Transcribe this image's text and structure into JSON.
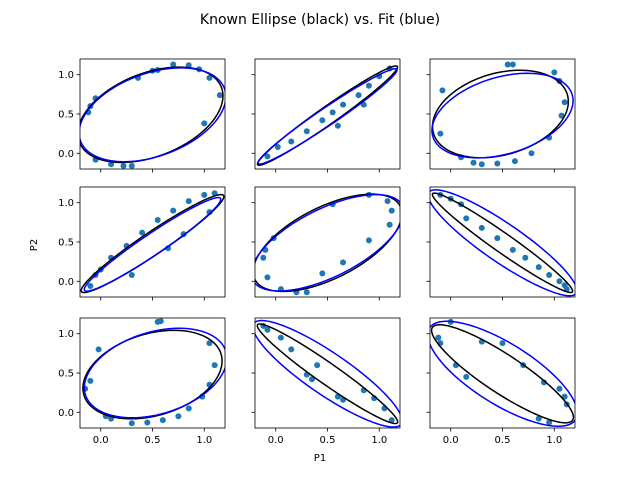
{
  "chart_data": {
    "type": "scatter",
    "title": "Known Ellipse (black) vs. Fit (blue)",
    "xlabel": "P1",
    "ylabel": "P2",
    "xlim": [
      -0.2,
      1.2
    ],
    "ylim": [
      -0.2,
      1.2
    ],
    "xticks": [
      0.0,
      0.5,
      1.0
    ],
    "yticks": [
      0.0,
      0.5,
      1.0
    ],
    "grid": false,
    "rows": 3,
    "cols": 3,
    "colors": {
      "known": "#000000",
      "fit": "#0000ff",
      "points": "#1f77b4"
    },
    "series_names": [
      "Known Ellipse",
      "Fit"
    ],
    "panels": [
      {
        "known": {
          "cx": 0.48,
          "cy": 0.49,
          "a": 0.78,
          "b": 0.5,
          "angle_deg": 35
        },
        "fit": {
          "cx": 0.5,
          "cy": 0.49,
          "a": 0.78,
          "b": 0.5,
          "angle_deg": 33
        },
        "points": [
          [
            -0.12,
            0.52
          ],
          [
            -0.1,
            0.6
          ],
          [
            -0.05,
            0.7
          ],
          [
            -0.05,
            -0.08
          ],
          [
            0.1,
            -0.14
          ],
          [
            0.22,
            -0.16
          ],
          [
            0.3,
            -0.16
          ],
          [
            0.36,
            0.96
          ],
          [
            0.5,
            1.05
          ],
          [
            0.55,
            1.06
          ],
          [
            0.7,
            1.13
          ],
          [
            0.85,
            1.12
          ],
          [
            0.95,
            1.07
          ],
          [
            1.05,
            0.96
          ],
          [
            1.0,
            0.38
          ],
          [
            1.15,
            0.74
          ]
        ]
      },
      {
        "known": {
          "cx": 0.5,
          "cy": 0.48,
          "a": 0.92,
          "b": 0.1,
          "angle_deg": 43
        },
        "fit": {
          "cx": 0.5,
          "cy": 0.47,
          "a": 0.9,
          "b": 0.1,
          "angle_deg": 42
        },
        "points": [
          [
            -0.08,
            -0.04
          ],
          [
            0.02,
            0.08
          ],
          [
            0.15,
            0.15
          ],
          [
            0.3,
            0.28
          ],
          [
            0.45,
            0.42
          ],
          [
            0.55,
            0.52
          ],
          [
            0.65,
            0.62
          ],
          [
            0.8,
            0.74
          ],
          [
            0.9,
            0.86
          ],
          [
            1.0,
            0.98
          ],
          [
            1.1,
            1.08
          ],
          [
            0.6,
            0.35
          ],
          [
            0.85,
            0.62
          ]
        ]
      },
      {
        "known": {
          "cx": 0.48,
          "cy": 0.5,
          "a": 0.7,
          "b": 0.5,
          "angle_deg": 30
        },
        "fit": {
          "cx": 0.5,
          "cy": 0.48,
          "a": 0.73,
          "b": 0.47,
          "angle_deg": 28
        },
        "points": [
          [
            -0.08,
            0.8
          ],
          [
            -0.1,
            0.25
          ],
          [
            0.1,
            -0.05
          ],
          [
            0.22,
            -0.12
          ],
          [
            0.3,
            -0.14
          ],
          [
            0.45,
            -0.13
          ],
          [
            0.62,
            -0.1
          ],
          [
            0.78,
            0.0
          ],
          [
            0.95,
            0.2
          ],
          [
            1.07,
            0.48
          ],
          [
            1.1,
            0.65
          ],
          [
            1.05,
            0.92
          ],
          [
            1.0,
            1.03
          ],
          [
            0.55,
            1.13
          ],
          [
            0.6,
            1.13
          ]
        ]
      },
      {
        "known": {
          "cx": 0.5,
          "cy": 0.48,
          "a": 0.92,
          "b": 0.13,
          "angle_deg": 42
        },
        "fit": {
          "cx": 0.5,
          "cy": 0.47,
          "a": 0.88,
          "b": 0.12,
          "angle_deg": 42
        },
        "points": [
          [
            -0.1,
            -0.06
          ],
          [
            -0.05,
            0.08
          ],
          [
            0.0,
            0.15
          ],
          [
            0.1,
            0.3
          ],
          [
            0.25,
            0.45
          ],
          [
            0.4,
            0.62
          ],
          [
            0.55,
            0.78
          ],
          [
            0.7,
            0.9
          ],
          [
            0.85,
            1.02
          ],
          [
            1.0,
            1.1
          ],
          [
            1.1,
            1.12
          ],
          [
            0.8,
            0.6
          ],
          [
            0.65,
            0.42
          ],
          [
            0.3,
            0.08
          ],
          [
            1.05,
            0.88
          ]
        ]
      },
      {
        "known": {
          "cx": 0.5,
          "cy": 0.49,
          "a": 0.85,
          "b": 0.42,
          "angle_deg": 38
        },
        "fit": {
          "cx": 0.5,
          "cy": 0.49,
          "a": 0.87,
          "b": 0.4,
          "angle_deg": 37
        },
        "points": [
          [
            -0.12,
            0.3
          ],
          [
            -0.1,
            0.4
          ],
          [
            -0.02,
            0.55
          ],
          [
            -0.08,
            0.05
          ],
          [
            0.05,
            -0.1
          ],
          [
            0.2,
            -0.14
          ],
          [
            0.3,
            -0.14
          ],
          [
            0.45,
            0.1
          ],
          [
            0.65,
            0.24
          ],
          [
            0.9,
            0.52
          ],
          [
            1.1,
            0.72
          ],
          [
            1.12,
            0.9
          ],
          [
            1.08,
            1.02
          ],
          [
            0.9,
            1.1
          ],
          [
            0.55,
            0.98
          ]
        ]
      },
      {
        "known": {
          "cx": 0.5,
          "cy": 0.49,
          "a": 0.92,
          "b": 0.11,
          "angle_deg": -43
        },
        "fit": {
          "cx": 0.5,
          "cy": 0.49,
          "a": 0.96,
          "b": 0.22,
          "angle_deg": -43
        },
        "points": [
          [
            -0.1,
            1.1
          ],
          [
            0.0,
            1.05
          ],
          [
            0.1,
            0.98
          ],
          [
            0.15,
            0.8
          ],
          [
            0.3,
            0.68
          ],
          [
            0.45,
            0.55
          ],
          [
            0.6,
            0.4
          ],
          [
            0.72,
            0.3
          ],
          [
            0.85,
            0.18
          ],
          [
            0.95,
            0.08
          ],
          [
            1.1,
            -0.05
          ],
          [
            1.12,
            -0.1
          ],
          [
            1.05,
            0.0
          ]
        ]
      },
      {
        "known": {
          "cx": 0.5,
          "cy": 0.48,
          "a": 0.72,
          "b": 0.5,
          "angle_deg": 30
        },
        "fit": {
          "cx": 0.53,
          "cy": 0.5,
          "a": 0.74,
          "b": 0.5,
          "angle_deg": 30
        },
        "points": [
          [
            -0.15,
            0.3
          ],
          [
            -0.1,
            0.4
          ],
          [
            -0.02,
            0.8
          ],
          [
            0.05,
            -0.05
          ],
          [
            0.1,
            -0.08
          ],
          [
            0.3,
            -0.14
          ],
          [
            0.45,
            -0.13
          ],
          [
            0.6,
            -0.1
          ],
          [
            0.75,
            -0.05
          ],
          [
            0.85,
            0.05
          ],
          [
            0.98,
            0.2
          ],
          [
            1.05,
            0.35
          ],
          [
            1.1,
            0.6
          ],
          [
            1.05,
            0.88
          ],
          [
            0.58,
            1.16
          ],
          [
            0.55,
            1.15
          ]
        ]
      },
      {
        "known": {
          "cx": 0.5,
          "cy": 0.49,
          "a": 0.92,
          "b": 0.12,
          "angle_deg": -43
        },
        "fit": {
          "cx": 0.5,
          "cy": 0.49,
          "a": 0.96,
          "b": 0.24,
          "angle_deg": -43
        },
        "points": [
          [
            -0.12,
            1.1
          ],
          [
            -0.08,
            1.05
          ],
          [
            0.05,
            0.95
          ],
          [
            0.3,
            0.48
          ],
          [
            0.35,
            0.42
          ],
          [
            0.6,
            0.2
          ],
          [
            0.65,
            0.16
          ],
          [
            0.85,
            0.28
          ],
          [
            0.95,
            0.18
          ],
          [
            1.05,
            0.05
          ],
          [
            1.12,
            -0.1
          ],
          [
            0.4,
            0.6
          ],
          [
            0.15,
            0.8
          ]
        ]
      },
      {
        "known": {
          "cx": 0.5,
          "cy": 0.49,
          "a": 0.9,
          "b": 0.22,
          "angle_deg": -42
        },
        "fit": {
          "cx": 0.5,
          "cy": 0.49,
          "a": 0.92,
          "b": 0.35,
          "angle_deg": -42
        },
        "points": [
          [
            -0.12,
            0.95
          ],
          [
            -0.1,
            0.88
          ],
          [
            0.0,
            1.15
          ],
          [
            0.05,
            0.6
          ],
          [
            0.15,
            0.45
          ],
          [
            0.5,
            0.88
          ],
          [
            0.7,
            0.6
          ],
          [
            0.9,
            0.38
          ],
          [
            1.05,
            0.3
          ],
          [
            1.1,
            0.2
          ],
          [
            1.12,
            0.1
          ],
          [
            0.85,
            -0.08
          ],
          [
            0.95,
            -0.13
          ],
          [
            0.3,
            0.9
          ]
        ]
      }
    ]
  }
}
